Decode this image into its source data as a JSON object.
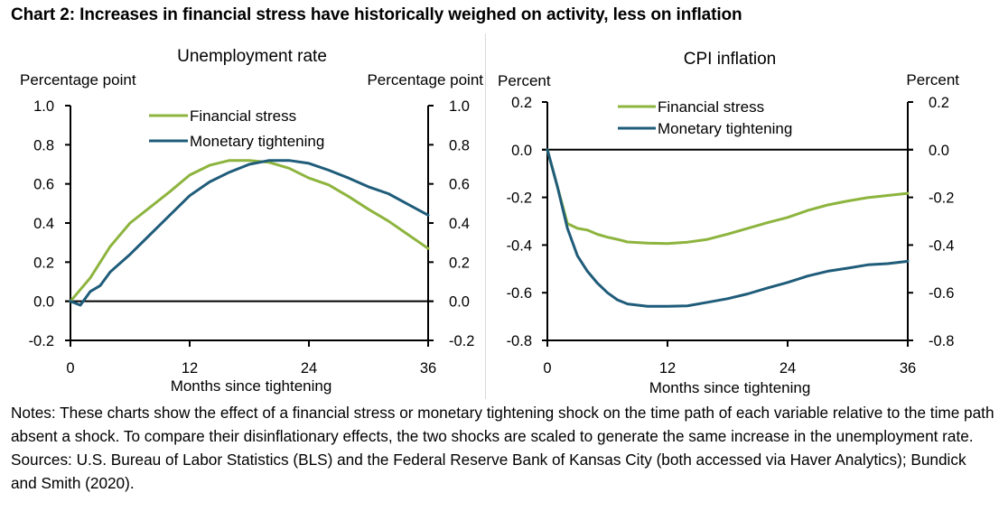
{
  "title": "Chart 2: Increases in financial stress have historically weighed on activity, less on inflation",
  "colors": {
    "financial_stress": "#8db43e",
    "monetary_tightening": "#1f5c7a",
    "axis": "#000000"
  },
  "chart_data": [
    {
      "type": "line",
      "title": "Unemployment rate",
      "xlabel": "Months since tightening",
      "ylabel_left": "Percentage point",
      "ylabel_right": "Percentage point",
      "xlim": [
        0,
        36
      ],
      "ylim": [
        -0.2,
        1.0
      ],
      "x_ticks": [
        0,
        12,
        24,
        36
      ],
      "x_tick_labels": [
        "0",
        "12",
        "24",
        "36"
      ],
      "y_ticks": [
        1.0,
        0.8,
        0.6,
        0.4,
        0.2,
        0.0,
        -0.2
      ],
      "y_tick_labels": [
        "1.0",
        "0.8",
        "0.6",
        "0.4",
        "0.2",
        "0.0",
        "-0.2"
      ],
      "grid": false,
      "legend": "top-center",
      "series": [
        {
          "name": "Financial stress",
          "x": [
            0,
            2,
            4,
            6,
            8,
            10,
            12,
            14,
            16,
            18,
            20,
            22,
            24,
            26,
            28,
            30,
            32,
            34,
            36
          ],
          "values": [
            0.0,
            0.12,
            0.28,
            0.4,
            0.48,
            0.56,
            0.645,
            0.695,
            0.72,
            0.72,
            0.71,
            0.68,
            0.63,
            0.595,
            0.535,
            0.47,
            0.41,
            0.34,
            0.27
          ]
        },
        {
          "name": "Monetary tightening",
          "x": [
            0,
            1,
            2,
            3,
            4,
            6,
            8,
            10,
            12,
            14,
            16,
            18,
            20,
            22,
            24,
            26,
            28,
            30,
            32,
            34,
            36
          ],
          "values": [
            0.0,
            -0.02,
            0.05,
            0.08,
            0.15,
            0.24,
            0.34,
            0.44,
            0.54,
            0.61,
            0.66,
            0.7,
            0.72,
            0.72,
            0.705,
            0.67,
            0.63,
            0.585,
            0.55,
            0.495,
            0.44
          ]
        }
      ]
    },
    {
      "type": "line",
      "title": "CPI inflation",
      "xlabel": "Months since tightening",
      "ylabel_left": "Percent",
      "ylabel_right": "Percent",
      "xlim": [
        0,
        36
      ],
      "ylim": [
        -0.8,
        0.2
      ],
      "x_ticks": [
        0,
        12,
        24,
        36
      ],
      "x_tick_labels": [
        "0",
        "12",
        "24",
        "36"
      ],
      "y_ticks": [
        0.2,
        0.0,
        -0.2,
        -0.4,
        -0.6,
        -0.8
      ],
      "y_tick_labels": [
        "0.2",
        "0.0",
        "-0.2",
        "-0.4",
        "-0.6",
        "-0.8"
      ],
      "grid": false,
      "legend": "top-center",
      "series": [
        {
          "name": "Financial stress",
          "x": [
            0,
            1,
            2,
            3,
            4,
            5,
            6,
            7,
            8,
            10,
            12,
            14,
            16,
            18,
            20,
            22,
            24,
            26,
            28,
            30,
            32,
            34,
            36
          ],
          "values": [
            0.0,
            -0.155,
            -0.31,
            -0.33,
            -0.337,
            -0.355,
            -0.367,
            -0.376,
            -0.387,
            -0.392,
            -0.394,
            -0.388,
            -0.376,
            -0.354,
            -0.33,
            -0.306,
            -0.284,
            -0.255,
            -0.232,
            -0.215,
            -0.201,
            -0.192,
            -0.183
          ]
        },
        {
          "name": "Monetary tightening",
          "x": [
            0,
            1,
            2,
            3,
            4,
            5,
            6,
            7,
            8,
            10,
            12,
            14,
            16,
            18,
            20,
            22,
            24,
            26,
            28,
            30,
            32,
            34,
            36
          ],
          "values": [
            0.0,
            -0.155,
            -0.33,
            -0.445,
            -0.51,
            -0.56,
            -0.6,
            -0.63,
            -0.647,
            -0.657,
            -0.657,
            -0.655,
            -0.64,
            -0.625,
            -0.605,
            -0.58,
            -0.557,
            -0.53,
            -0.51,
            -0.497,
            -0.483,
            -0.478,
            -0.468
          ]
        }
      ]
    }
  ],
  "notes": {
    "notes_text": "Notes: These charts show the effect of a financial stress or monetary tightening shock on the time path of each variable relative to the time path absent a shock. To compare their disinflationary effects, the two shocks are scaled to generate the same increase in the unemployment rate.",
    "sources_text": "Sources: U.S. Bureau of Labor Statistics (BLS) and the Federal Reserve Bank of Kansas City (both accessed via Haver Analytics); Bundick and Smith (2020)."
  }
}
